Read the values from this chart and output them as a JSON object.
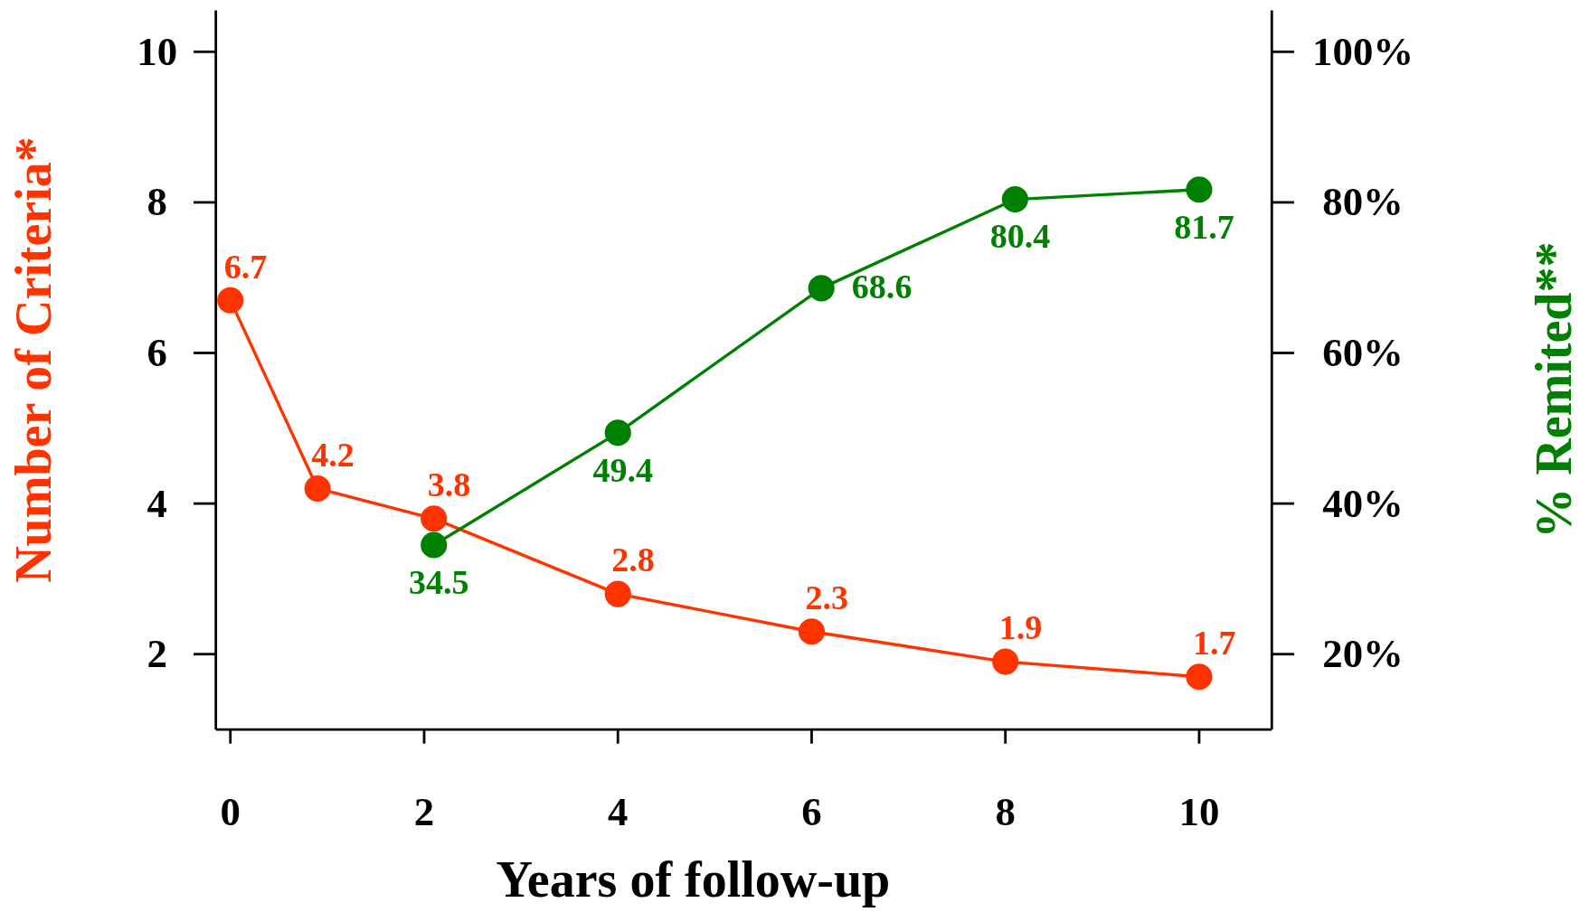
{
  "chart_data": {
    "type": "line",
    "xlabel": "Years of follow-up",
    "ylabel": "Number of Criteria*",
    "y2label": "% Remited**",
    "xlim": [
      -0.15,
      10.75
    ],
    "xticks": [
      0,
      2,
      4,
      6,
      8,
      10
    ],
    "ylim": [
      1,
      10.55
    ],
    "yticks": [
      2,
      4,
      6,
      8,
      10
    ],
    "y2lim": [
      10,
      105.5
    ],
    "y2ticks": [
      {
        "value": 20,
        "label": "20%"
      },
      {
        "value": 40,
        "label": "40%"
      },
      {
        "value": 60,
        "label": "60%"
      },
      {
        "value": 80,
        "label": "80%"
      },
      {
        "value": 100,
        "label": "100%"
      }
    ],
    "marker": "circle",
    "grid": false,
    "data_labels": true,
    "series": [
      {
        "color": "#ff3300",
        "x": [
          0,
          0.9,
          2.1,
          4,
          6,
          8,
          10
        ],
        "values": [
          6.7,
          4.2,
          3.8,
          2.8,
          2.3,
          1.9,
          1.7
        ]
      },
      {
        "color": "#008000",
        "axis": "y2",
        "x": [
          2.1,
          4,
          6.1,
          8.1,
          10
        ],
        "values": [
          34.5,
          49.4,
          68.6,
          80.4,
          81.7
        ]
      }
    ]
  }
}
